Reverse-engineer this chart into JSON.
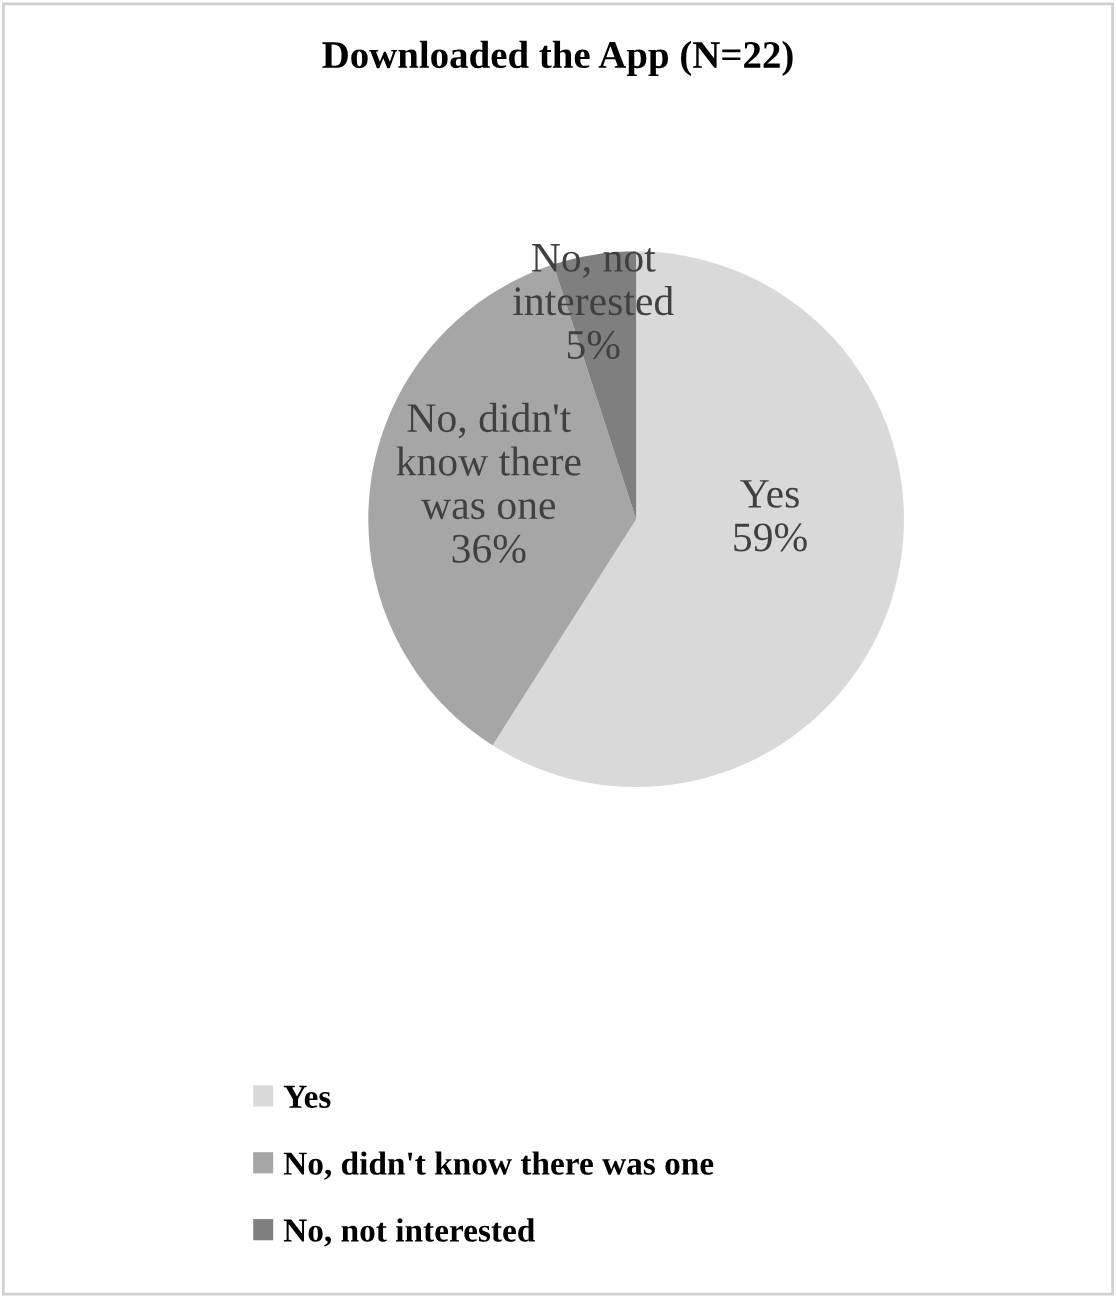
{
  "chart_data": {
    "type": "pie",
    "title": "Downloaded the App (N=22)",
    "categories": [
      "Yes",
      "No, didn't know there was one",
      "No, not interested"
    ],
    "values": [
      59,
      36,
      5
    ],
    "colors": [
      "#d9d9d9",
      "#a6a6a6",
      "#7f7f7f"
    ],
    "value_labels": [
      "Yes\n59%",
      "No, didn't\nknow there\nwas one\n36%",
      "No, not\ninterested\n5%"
    ],
    "legend": "bottom"
  }
}
